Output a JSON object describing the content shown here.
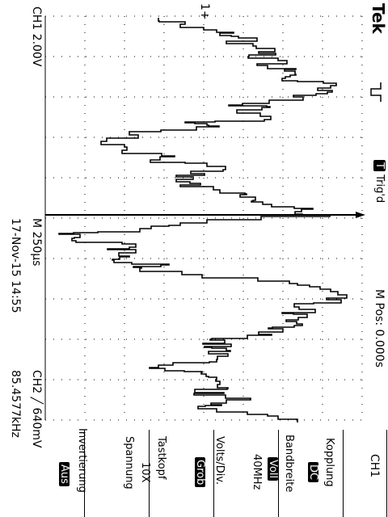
{
  "header": {
    "brand": "Tek",
    "trigger_badge": "T",
    "trigger_status": "Trig'd",
    "channel_scale": "CH1  2.00V",
    "timebase": "M 250µs",
    "position": "M Pos: 0.000s",
    "datetime": "17-Nov-15 14:55",
    "trigger_info": "CH2 ╱ 640mV",
    "frequency": "85.4577kHz",
    "ch1_marker": "1+",
    "waveform_icon": "pulse-icon"
  },
  "menu": {
    "title": "CH1",
    "items": [
      {
        "label": "Kopplung",
        "value": "DC"
      },
      {
        "label": "Bandbreite",
        "value": "Voll",
        "extra": "40MHz"
      },
      {
        "label": "Volts/Div.",
        "value": "Grob"
      },
      {
        "label": "Tastkopf",
        "value": "10X",
        "extra": "Spannung"
      },
      {
        "label": "Invertierung",
        "value": "Aus"
      }
    ]
  },
  "colors": {
    "foreground": "#000000",
    "background": "#ffffff"
  }
}
